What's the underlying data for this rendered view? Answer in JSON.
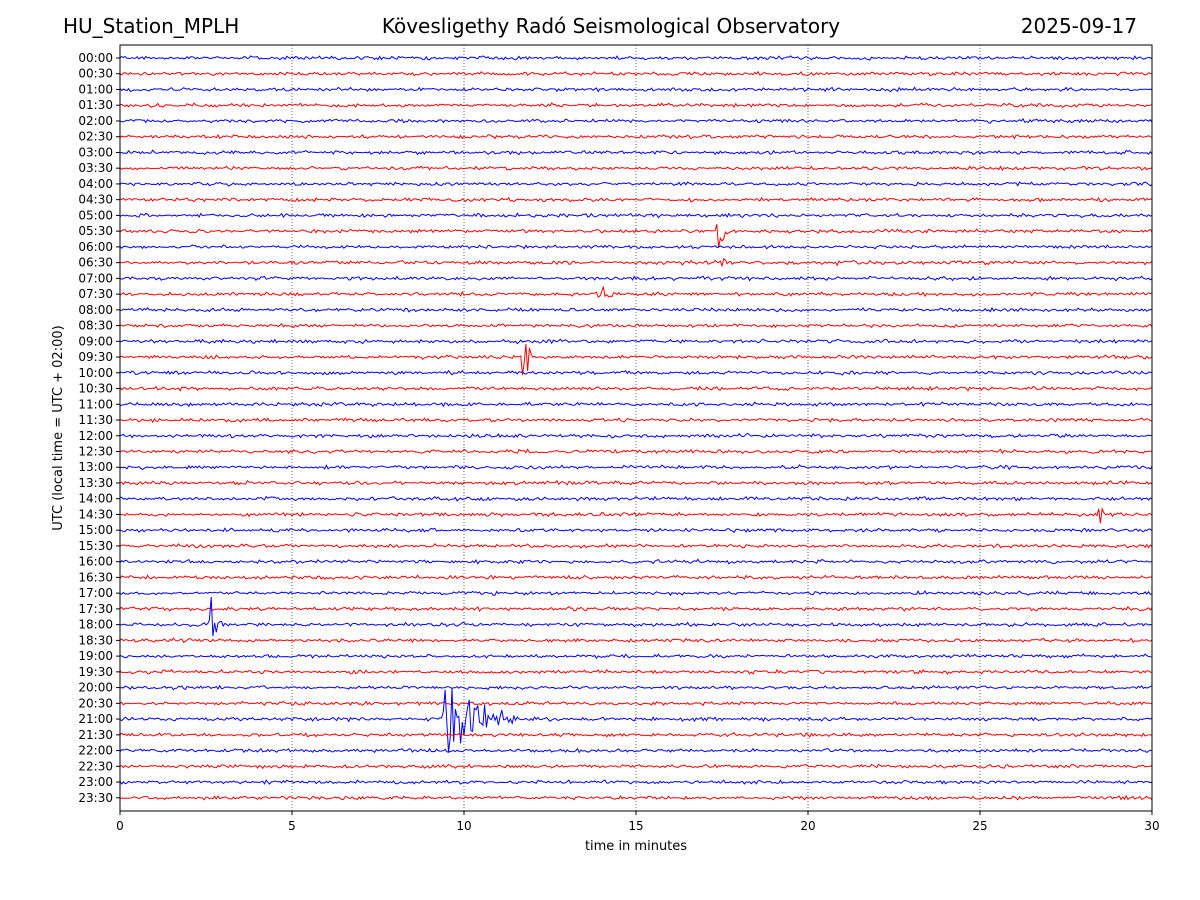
{
  "header": {
    "station": "HU_Station_MPLH",
    "title": "Kövesligethy Radó Seismological Observatory",
    "date": "2025-09-17"
  },
  "chart_data": {
    "type": "line",
    "title": "Kövesligethy Radó Seismological Observatory",
    "xlabel": "time in minutes",
    "ylabel": "UTC (local time = UTC + 02:00)",
    "xlim": [
      0,
      30
    ],
    "xticks": [
      0,
      5,
      10,
      15,
      20,
      25,
      30
    ],
    "grid": "vertical dotted lines at each x tick",
    "colors": [
      "#0000ff",
      "#ff0000"
    ],
    "color_rule": "traces alternate blue (full hour) and red (half hour)",
    "rows": [
      "00:00",
      "00:30",
      "01:00",
      "01:30",
      "02:00",
      "02:30",
      "03:00",
      "03:30",
      "04:00",
      "04:30",
      "05:00",
      "05:30",
      "06:00",
      "06:30",
      "07:00",
      "07:30",
      "08:00",
      "08:30",
      "09:00",
      "09:30",
      "10:00",
      "10:30",
      "11:00",
      "11:30",
      "12:00",
      "12:30",
      "13:00",
      "13:30",
      "14:00",
      "14:30",
      "15:00",
      "15:30",
      "16:00",
      "16:30",
      "17:00",
      "17:30",
      "18:00",
      "18:30",
      "19:00",
      "19:30",
      "20:00",
      "20:30",
      "21:00",
      "21:30",
      "22:00",
      "22:30",
      "23:00",
      "23:30"
    ],
    "events": [
      {
        "row": "05:30",
        "onset_min": 17.4,
        "duration_min": 0.4,
        "peak_amplitude_rows": 1.9
      },
      {
        "row": "06:30",
        "onset_min": 17.5,
        "duration_min": 0.9,
        "peak_amplitude_rows": 0.3
      },
      {
        "row": "06:30",
        "onset_min": 20.8,
        "duration_min": 0.6,
        "peak_amplitude_rows": 0.3
      },
      {
        "row": "07:30",
        "onset_min": 13.9,
        "duration_min": 0.5,
        "peak_amplitude_rows": 2.5
      },
      {
        "row": "09:30",
        "onset_min": 11.75,
        "duration_min": 0.3,
        "peak_amplitude_rows": 3.0
      },
      {
        "row": "12:00",
        "onset_min": 22.0,
        "duration_min": 2.5,
        "peak_amplitude_rows": 0.15
      },
      {
        "row": "14:30",
        "onset_min": 28.45,
        "duration_min": 0.9,
        "peak_amplitude_rows": 0.7
      },
      {
        "row": "18:00",
        "onset_min": 2.65,
        "duration_min": 0.5,
        "peak_amplitude_rows": 2.7
      },
      {
        "row": "21:00",
        "onset_min": 9.45,
        "duration_min": 2.3,
        "peak_amplitude_rows": 3.9
      }
    ]
  }
}
